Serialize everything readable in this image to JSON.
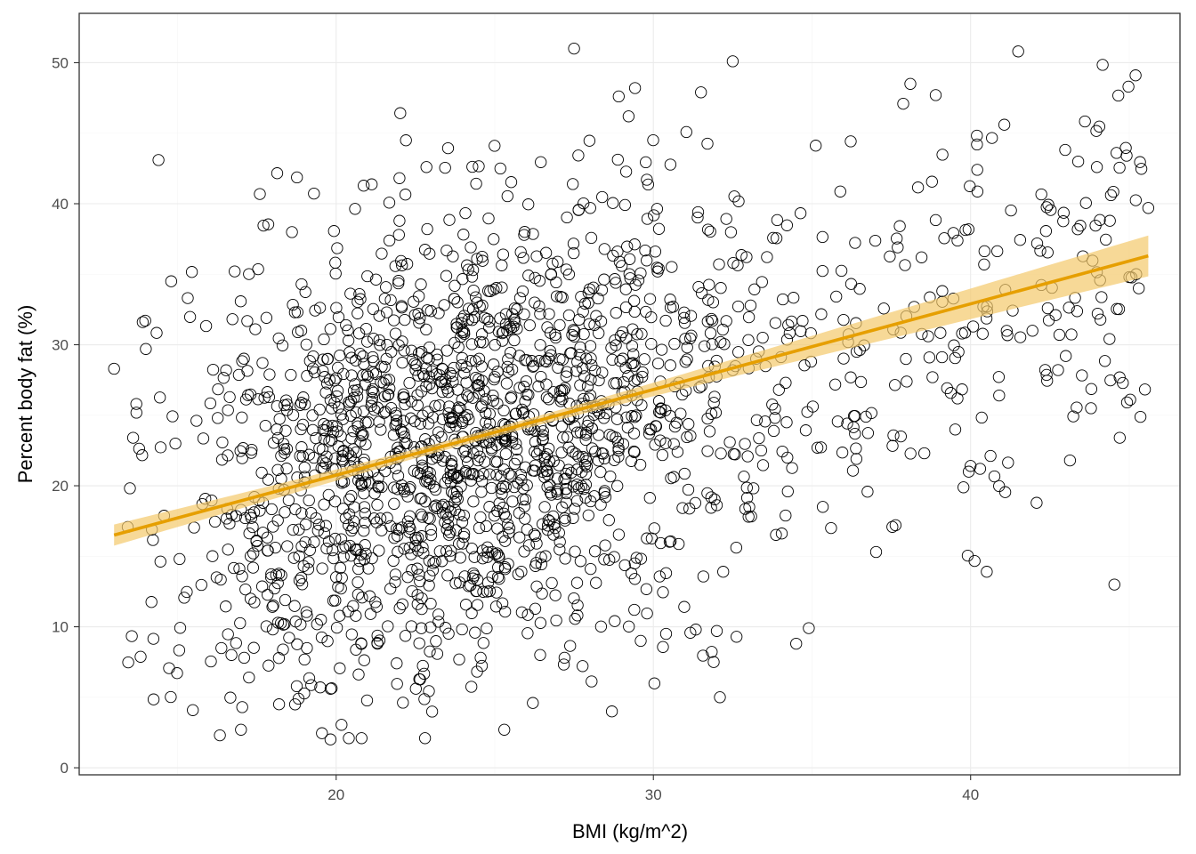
{
  "chart_data": {
    "type": "scatter",
    "title": "",
    "xlabel": "BMI (kg/m^2)",
    "ylabel": "Percent body fat (%)",
    "xlim": [
      11.9,
      46.6
    ],
    "ylim": [
      -0.5,
      53.5
    ],
    "x_ticks": [
      20,
      30,
      40
    ],
    "y_ticks": [
      0,
      10,
      20,
      30,
      40,
      50
    ],
    "grid": true,
    "point_style": "open circles",
    "n_points": 2000,
    "point_color": "#000000",
    "fit": {
      "type": "linear",
      "x": [
        13.0,
        45.6
      ],
      "y": [
        16.5,
        36.3
      ],
      "ci_halfwidth_at_ends": [
        0.75,
        1.45
      ],
      "ci_halfwidth_at_center": 0.3,
      "center_x": 24.5,
      "line_color": "#E69F00",
      "band_color": "#F3C96B"
    },
    "sample_points": [
      [
        13.0,
        28.3
      ],
      [
        13.6,
        23.4
      ],
      [
        13.7,
        25.8
      ],
      [
        14.0,
        29.7
      ],
      [
        14.4,
        43.1
      ],
      [
        14.8,
        34.5
      ],
      [
        16.8,
        35.2
      ],
      [
        17.0,
        2.7
      ],
      [
        22.2,
        44.5
      ],
      [
        27.5,
        51.0
      ],
      [
        32.5,
        50.1
      ],
      [
        31.5,
        47.9
      ],
      [
        38.1,
        48.5
      ],
      [
        38.9,
        47.7
      ],
      [
        41.5,
        50.8
      ],
      [
        45.2,
        49.1
      ],
      [
        45.6,
        39.7
      ],
      [
        45.3,
        34.0
      ],
      [
        44.7,
        23.4
      ],
      [
        44.6,
        43.6
      ],
      [
        40.2,
        44.2
      ],
      [
        40.0,
        21.4
      ],
      [
        40.3,
        21.2
      ],
      [
        40.4,
        32.7
      ],
      [
        42.8,
        30.7
      ],
      [
        43.0,
        29.2
      ],
      [
        40.9,
        26.4
      ],
      [
        35.6,
        17.0
      ],
      [
        34.9,
        9.9
      ],
      [
        34.5,
        8.8
      ],
      [
        31.9,
        7.5
      ],
      [
        32.0,
        9.7
      ],
      [
        30.4,
        9.5
      ],
      [
        29.6,
        9.0
      ],
      [
        29.4,
        11.2
      ],
      [
        36.4,
        21.9
      ],
      [
        36.7,
        24.9
      ],
      [
        37.8,
        23.5
      ],
      [
        38.8,
        27.7
      ],
      [
        38.7,
        29.1
      ],
      [
        20.4,
        2.1
      ],
      [
        20.8,
        2.1
      ],
      [
        22.8,
        2.1
      ],
      [
        25.3,
        2.7
      ],
      [
        26.2,
        4.6
      ],
      [
        18.2,
        4.5
      ],
      [
        19.5,
        5.7
      ],
      [
        17.1,
        7.8
      ],
      [
        16.7,
        8.0
      ],
      [
        32.2,
        13.9
      ],
      [
        30.4,
        13.8
      ],
      [
        27.2,
        7.8
      ],
      [
        33.4,
        22.5
      ],
      [
        34.2,
        24.5
      ],
      [
        33.0,
        17.8
      ]
    ]
  }
}
